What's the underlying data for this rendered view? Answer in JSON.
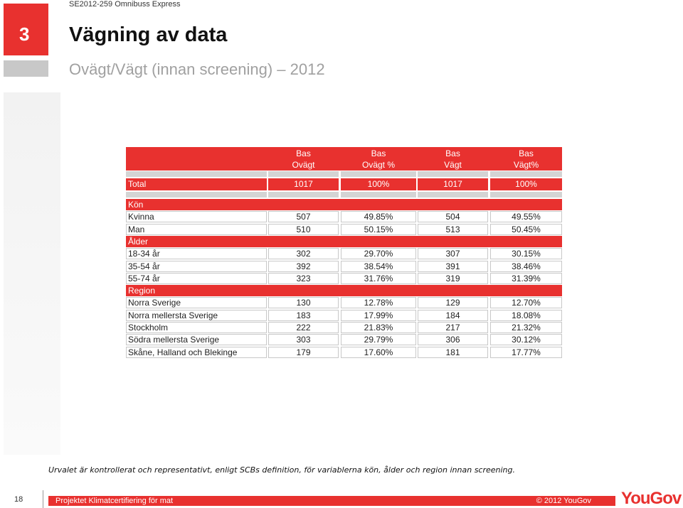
{
  "header": {
    "project": "SE2012-259 Omnibuss Express",
    "section": "3",
    "title": "Vägning av data",
    "subtitle": "Ovägt/Vägt (innan screening) – 2012"
  },
  "table": {
    "header": [
      [
        "Bas",
        "Ovägt"
      ],
      [
        "Bas",
        "Ovägt %"
      ],
      [
        "Bas",
        "Vägt"
      ],
      [
        "Bas",
        "Vägt%"
      ]
    ],
    "total": {
      "label": "Total",
      "cells": [
        "1017",
        "100%",
        "1017",
        "100%"
      ]
    },
    "groups": [
      {
        "title": "Kön",
        "rows": [
          {
            "label": "Kvinna",
            "cells": [
              "507",
              "49.85%",
              "504",
              "49.55%"
            ]
          },
          {
            "label": "Man",
            "cells": [
              "510",
              "50.15%",
              "513",
              "50.45%"
            ]
          }
        ]
      },
      {
        "title": "Ålder",
        "rows": [
          {
            "label": "18-34 år",
            "cells": [
              "302",
              "29.70%",
              "307",
              "30.15%"
            ]
          },
          {
            "label": "35-54 år",
            "cells": [
              "392",
              "38.54%",
              "391",
              "38.46%"
            ]
          },
          {
            "label": "55-74 år",
            "cells": [
              "323",
              "31.76%",
              "319",
              "31.39%"
            ]
          }
        ]
      },
      {
        "title": "Region",
        "rows": [
          {
            "label": "Norra Sverige",
            "cells": [
              "130",
              "12.78%",
              "129",
              "12.70%"
            ]
          },
          {
            "label": "Norra mellersta Sverige",
            "cells": [
              "183",
              "17.99%",
              "184",
              "18.08%"
            ]
          },
          {
            "label": "Stockholm",
            "cells": [
              "222",
              "21.83%",
              "217",
              "21.32%"
            ]
          },
          {
            "label": "Södra mellersta Sverige",
            "cells": [
              "303",
              "29.79%",
              "306",
              "30.12%"
            ]
          },
          {
            "label": "Skåne, Halland och Blekinge",
            "cells": [
              "179",
              "17.60%",
              "181",
              "17.77%"
            ]
          }
        ]
      }
    ]
  },
  "footnote": "Urvalet är kontrollerat och representativt, enligt SCBs definition, för variablerna kön, ålder och region innan screening.",
  "footer": {
    "page": "18",
    "text": "Projektet Klimatcertifiering för mat",
    "copyright": "© 2012 YouGov",
    "logo": "YouGov"
  }
}
